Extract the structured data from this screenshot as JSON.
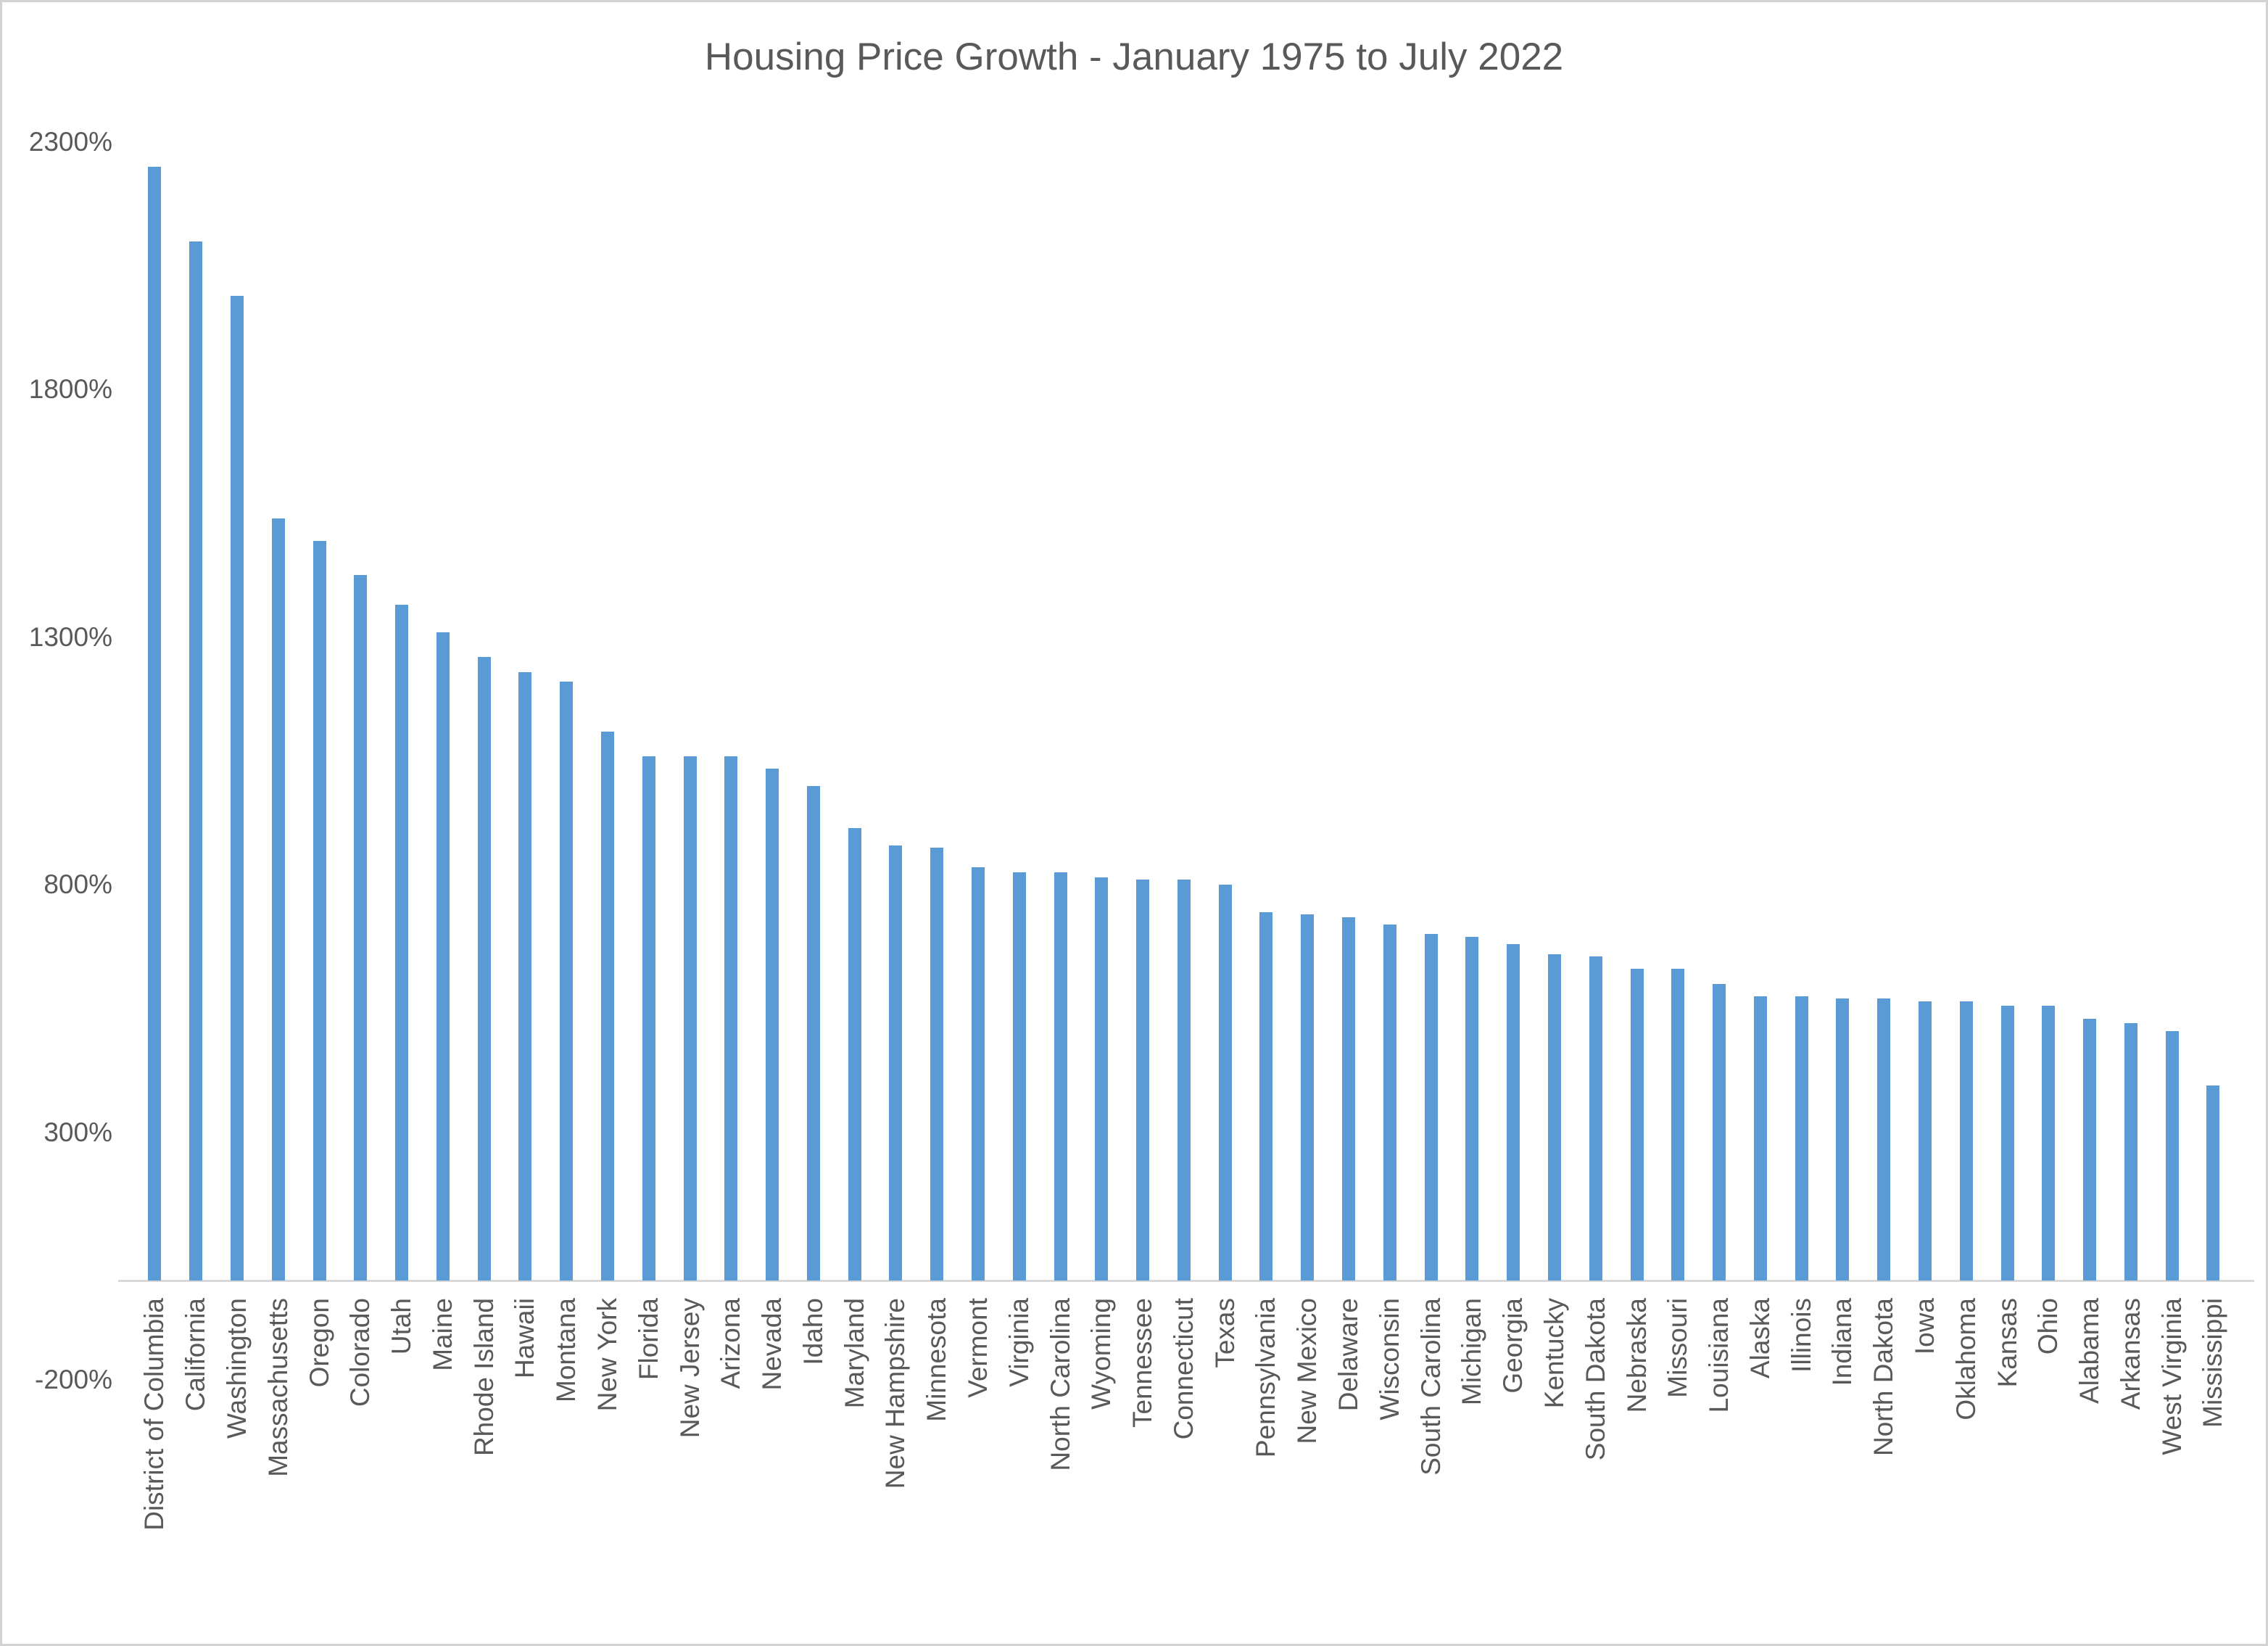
{
  "chart_data": {
    "type": "bar",
    "title": "Housing Price Growth - January 1975 to July 2022",
    "xlabel": "",
    "ylabel": "",
    "ylim": [
      -200,
      2300
    ],
    "grid": false,
    "legend": false,
    "yticks": [
      {
        "value": 2300,
        "label": "2300%"
      },
      {
        "value": 1800,
        "label": "1800%"
      },
      {
        "value": 1300,
        "label": "1300%"
      },
      {
        "value": 800,
        "label": "800%"
      },
      {
        "value": 300,
        "label": "300%"
      },
      {
        "value": -200,
        "label": "-200%"
      }
    ],
    "categories": [
      "District of Columbia",
      "California",
      "Washington",
      "Massachusetts",
      "Oregon",
      "Colorado",
      "Utah",
      "Maine",
      "Rhode Island",
      "Hawaii",
      "Montana",
      "New York",
      "Florida",
      "New Jersey",
      "Arizona",
      "Nevada",
      "Idaho",
      "Maryland",
      "New Hampshire",
      "Minnesota",
      "Vermont",
      "Virginia",
      "North Carolina",
      "Wyoming",
      "Tennessee",
      "Connecticut",
      "Texas",
      "Pennsylvania",
      "New Mexico",
      "Delaware",
      "Wisconsin",
      "South Carolina",
      "Michigan",
      "Georgia",
      "Kentucky",
      "South Dakota",
      "Nebraska",
      "Missouri",
      "Louisiana",
      "Alaska",
      "Illinois",
      "Indiana",
      "North Dakota",
      "Iowa",
      "Oklahoma",
      "Kansas",
      "Ohio",
      "Alabama",
      "Arkansas",
      "West Virginia",
      "Mississippi"
    ],
    "values": [
      2250,
      2100,
      1990,
      1540,
      1495,
      1425,
      1365,
      1310,
      1260,
      1230,
      1210,
      1110,
      1060,
      1060,
      1060,
      1035,
      1000,
      915,
      880,
      875,
      835,
      825,
      825,
      815,
      810,
      810,
      800,
      745,
      740,
      735,
      720,
      700,
      695,
      680,
      660,
      655,
      630,
      630,
      600,
      575,
      575,
      570,
      570,
      565,
      565,
      555,
      555,
      530,
      520,
      505,
      395
    ],
    "value_suffix": "%",
    "colors": {
      "bar": "#5b9bd5",
      "axis_line": "#d9d9d9",
      "text": "#595959",
      "background": "#ffffff",
      "frame_border": "#d2d2d2"
    }
  }
}
